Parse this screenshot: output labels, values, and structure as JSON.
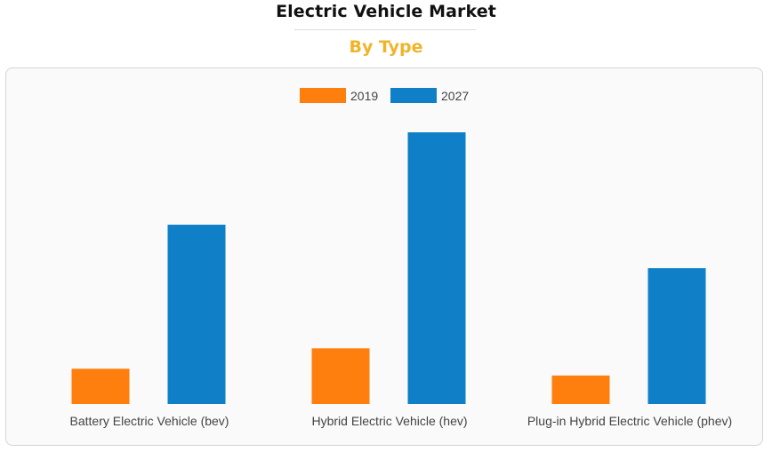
{
  "header": {
    "title": "Electric Vehicle Market",
    "subtitle": "By Type"
  },
  "chart_data": {
    "type": "bar",
    "title": "",
    "xlabel": "",
    "ylabel": "",
    "categories": [
      "Battery Electric Vehicle (bev)",
      "Hybrid Electric Vehicle (hev)",
      "Plug-in Hybrid Electric Vehicle (phev)"
    ],
    "series": [
      {
        "name": "2019",
        "color": "#ff7f0e",
        "values": [
          13,
          20.5,
          10.5
        ]
      },
      {
        "name": "2027",
        "color": "#0f80c8",
        "values": [
          66,
          100,
          50
        ]
      }
    ],
    "ylim": [
      0,
      100
    ],
    "grid": false,
    "legend": "top-center"
  }
}
